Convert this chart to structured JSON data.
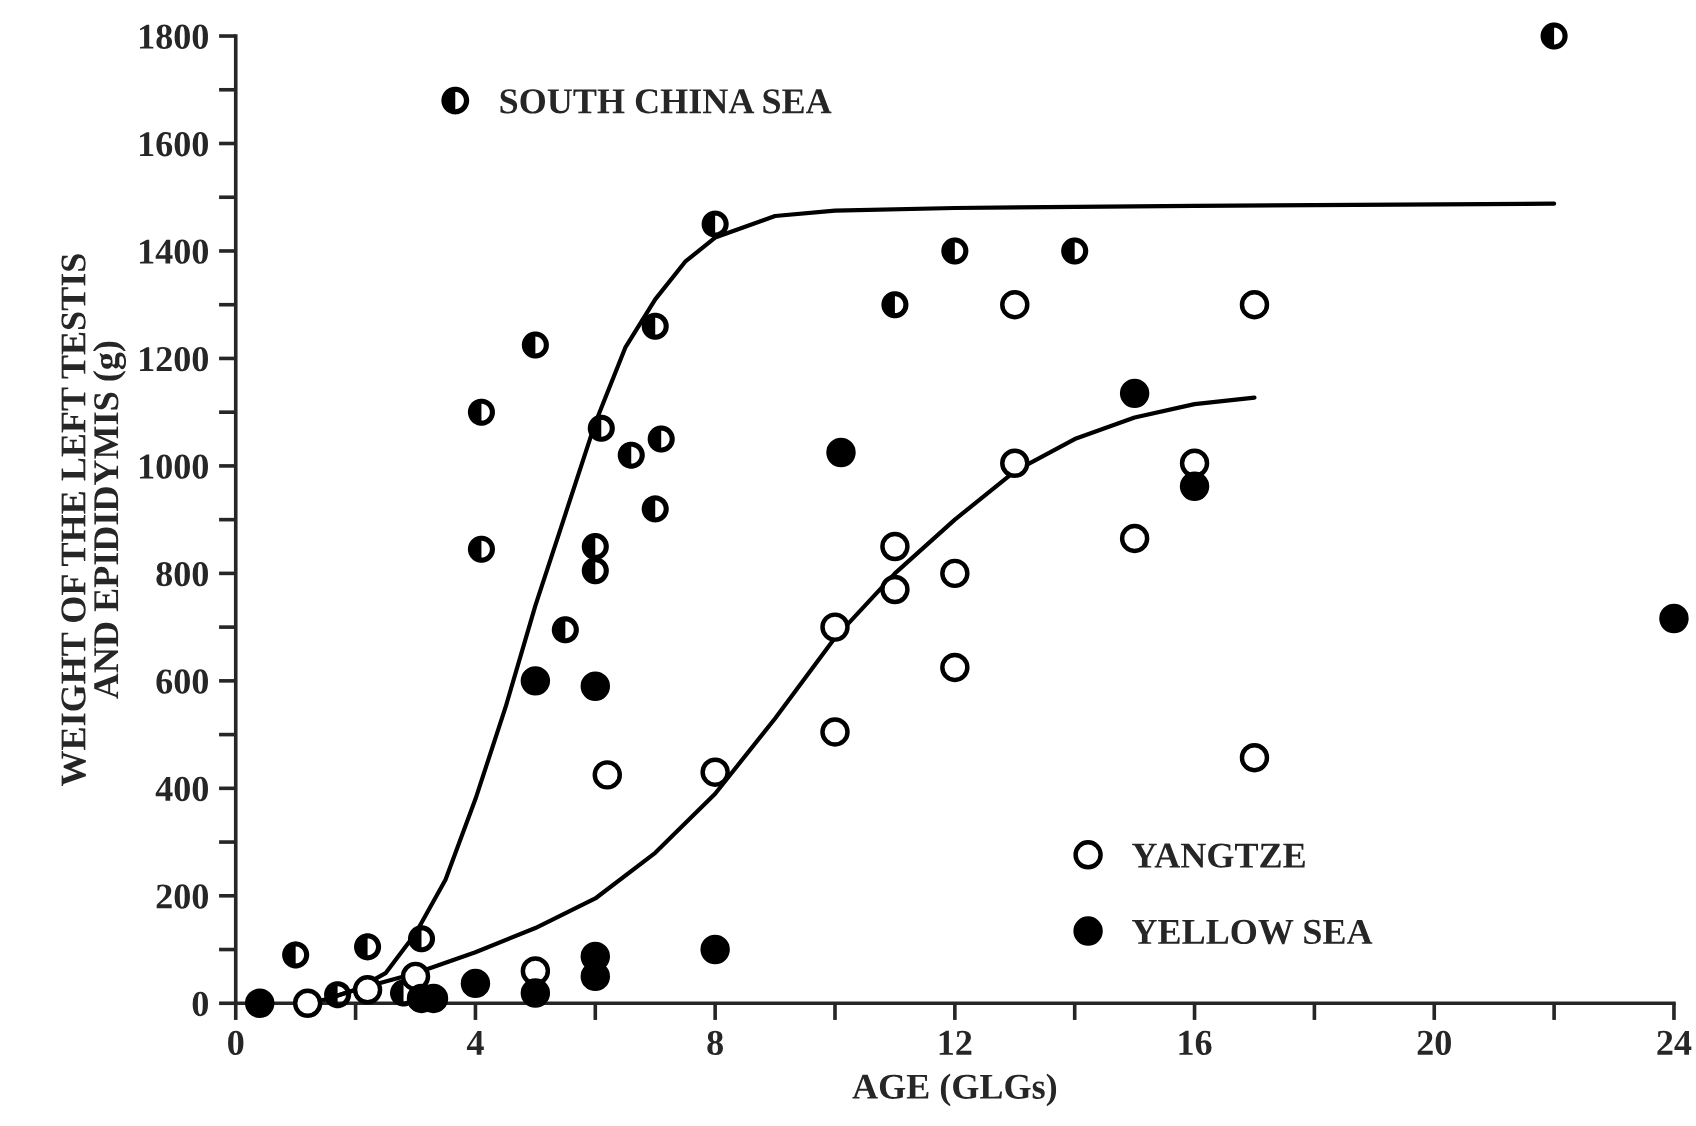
{
  "chart_data": {
    "type": "scatter",
    "xlabel": "AGE (GLGs)",
    "ylabel": "WEIGHT OF THE LEFT TESTIS\nAND EPIDIDYMIS (g)",
    "xlim": [
      0,
      24
    ],
    "ylim": [
      0,
      1800
    ],
    "xticks": [
      0,
      {
        "value": 2,
        "label": null
      },
      4,
      {
        "value": 6,
        "label": null
      },
      8,
      {
        "value": 10,
        "label": null
      },
      12,
      {
        "value": 14,
        "label": null
      },
      16,
      {
        "value": 18,
        "label": null
      },
      20,
      {
        "value": 22,
        "label": null
      },
      24
    ],
    "yticks": [
      0,
      {
        "value": 100,
        "label": null
      },
      200,
      {
        "value": 300,
        "label": null
      },
      400,
      {
        "value": 500,
        "label": null
      },
      600,
      {
        "value": 700,
        "label": null
      },
      800,
      {
        "value": 900,
        "label": null
      },
      1000,
      {
        "value": 1100,
        "label": null
      },
      1200,
      {
        "value": 1300,
        "label": null
      },
      1400,
      {
        "value": 1500,
        "label": null
      },
      1600,
      {
        "value": 1700,
        "label": null
      },
      1800
    ],
    "grid": false,
    "legend": "top left",
    "marker": "circle",
    "series": [
      {
        "name": "SOUTH CHINA SEA",
        "color": "#000000",
        "x": [
          8.0,
          12.0,
          11.0,
          5.0,
          7.0,
          4.1,
          6.1,
          6.6,
          7.1,
          7.0,
          4.1,
          6.0,
          6.0,
          5.5,
          1.0,
          2.2,
          3.1,
          22.0,
          14.0,
          1.7,
          2.8
        ],
        "values": [
          1450,
          1400,
          1300,
          1225,
          1260,
          1100,
          1070,
          1020,
          1050,
          920,
          845,
          850,
          805,
          695,
          90,
          105,
          120,
          1800,
          1400,
          16,
          19
        ]
      },
      {
        "name": "YANGTZE",
        "color": "#000000",
        "x": [
          13.0,
          17.0,
          13.0,
          16.0,
          15.0,
          12.0,
          11.0,
          11.0,
          10.0,
          12.0,
          10.0,
          6.2,
          8.0,
          17.0,
          5.0,
          1.2,
          2.2,
          3.0
        ],
        "values": [
          1300,
          1300,
          1005,
          1005,
          865,
          800,
          850,
          770,
          700,
          625,
          505,
          425,
          430,
          457,
          60,
          0,
          25,
          50
        ]
      },
      {
        "name": "YELLOW SEA",
        "color": "#000000",
        "x": [
          5.0,
          6.0,
          6.0,
          6.0,
          8.0,
          4.0,
          5.0,
          0.4,
          10.1,
          15.0,
          16.0,
          24.0,
          3.1,
          3.3
        ],
        "values": [
          600,
          590,
          87,
          50,
          100,
          37,
          19,
          0,
          1025,
          1135,
          962,
          716,
          9,
          9
        ]
      },
      {
        "type": "line",
        "marker": "none",
        "color": "#000000",
        "x": [
          1.3,
          2,
          2.5,
          3,
          3.5,
          4,
          4.5,
          5,
          5.5,
          6,
          6.5,
          7,
          7.5,
          8,
          9,
          10,
          12,
          16,
          22
        ],
        "values": [
          0,
          25,
          56,
          130,
          230,
          380,
          550,
          740,
          910,
          1080,
          1220,
          1310,
          1380,
          1425,
          1465,
          1475,
          1480,
          1484,
          1488
        ]
      },
      {
        "type": "line",
        "marker": "none",
        "color": "#000000",
        "x": [
          1.3,
          2,
          3,
          4,
          5,
          6,
          7,
          8,
          9,
          10,
          11,
          12,
          13,
          14,
          15,
          16,
          17
        ],
        "values": [
          0,
          25,
          56,
          95,
          140,
          195,
          280,
          390,
          530,
          680,
          800,
          900,
          990,
          1050,
          1090,
          1115,
          1127
        ]
      }
    ]
  }
}
